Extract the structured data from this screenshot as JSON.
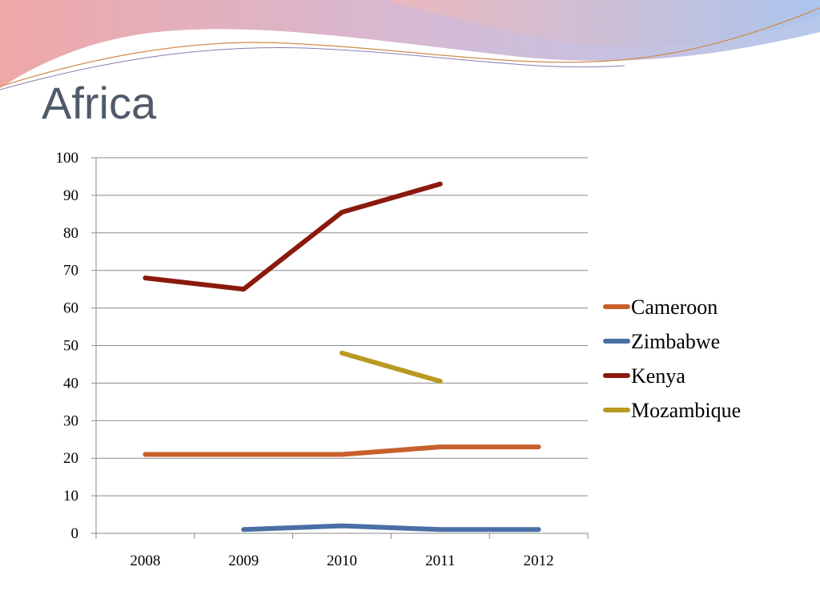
{
  "slide": {
    "title": "Africa"
  },
  "chart_data": {
    "type": "line",
    "title": "",
    "xlabel": "",
    "ylabel": "",
    "categories": [
      "2008",
      "2009",
      "2010",
      "2011",
      "2012"
    ],
    "ylim": [
      0,
      100
    ],
    "yticks": [
      0,
      10,
      20,
      30,
      40,
      50,
      60,
      70,
      80,
      90,
      100
    ],
    "grid": true,
    "legend_position": "right",
    "series": [
      {
        "name": "Cameroon",
        "color": "#c8602c",
        "values": [
          21,
          21,
          21,
          23,
          23
        ]
      },
      {
        "name": "Zimbabwe",
        "color": "#4a6fa5",
        "values": [
          null,
          1,
          2,
          1,
          1
        ]
      },
      {
        "name": "Kenya",
        "color": "#8b1a0e",
        "values": [
          68,
          65,
          85.5,
          93,
          null
        ]
      },
      {
        "name": "Mozambique",
        "color": "#b89a23",
        "values": [
          null,
          null,
          48,
          40.5,
          null
        ]
      }
    ]
  }
}
